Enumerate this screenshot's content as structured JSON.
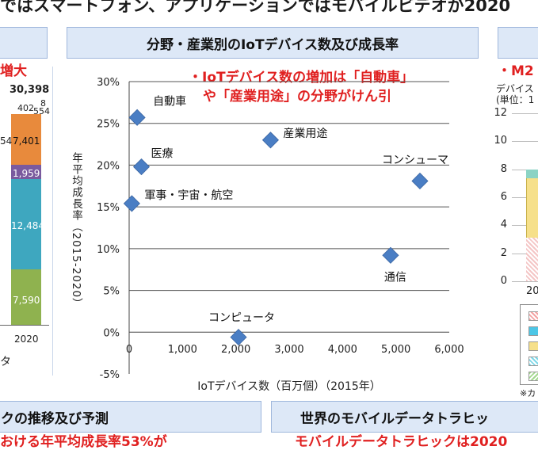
{
  "top_banner": "ではスマートフォン、アプリケーションではモバイルビデオが2020",
  "center_panel": {
    "title": "分野・産業別のIoTデバイス数及び成長率",
    "note_line1": "・IoTデバイス数の増加は「自動車」",
    "note_line2": "や「産業用途」の分野がけん引"
  },
  "left_panel": {
    "red_fragment": "増大",
    "total": "30,398",
    "top_small": [
      "402",
      "8",
      "554"
    ],
    "seg_labels": [
      "7,401",
      "1,959",
      "12,484",
      "7,590"
    ],
    "edge_fragment": "54",
    "year": "2020",
    "bottom_fragment": "タ"
  },
  "right_panel": {
    "red_fragment": "・M2",
    "sub1": "デバイス",
    "sub2": "(単位：1",
    "yticks": [
      "12",
      "10",
      "8",
      "6",
      "4",
      "2",
      "0"
    ],
    "year_fragment": "20",
    "note_fragment": "※カ"
  },
  "bottom_panels": {
    "left_title": "クの推移及び予測",
    "right_title": "世界のモバイルデータトラヒッ",
    "left_sub": "おける年平均成長率53%が",
    "right_sub": "モバイルデータトラヒックは2020"
  },
  "colors": {
    "marker": "#4a7ec4",
    "gridline": "#555555",
    "note_red": "#e02020",
    "seg_green": "#8fb24f",
    "seg_teal": "#3ea7bf",
    "seg_purple": "#7a5a9e",
    "seg_orange": "#e88a3c"
  },
  "chart_data": {
    "type": "scatter",
    "title": "分野・産業別のIoTデバイス数及び成長率",
    "xlabel": "IoTデバイス数（百万個）（2015年）",
    "ylabel": "年平均成長率（2015-2020）",
    "xlim": [
      0,
      6000
    ],
    "ylim": [
      -5,
      30
    ],
    "xticks": [
      "0",
      "1,000",
      "2,000",
      "3,000",
      "4,000",
      "5,000",
      "6,000"
    ],
    "yticks": [
      "30%",
      "25%",
      "20%",
      "15%",
      "10%",
      "5%",
      "0%",
      "-5%"
    ],
    "grid": "horizontal",
    "points": [
      {
        "label": "自動車",
        "x": 150,
        "y": 25.7
      },
      {
        "label": "医療",
        "x": 230,
        "y": 19.8
      },
      {
        "label": "軍事・宇宙・航空",
        "x": 50,
        "y": 15.4
      },
      {
        "label": "産業用途",
        "x": 2650,
        "y": 23.0
      },
      {
        "label": "コンシューマ",
        "x": 5450,
        "y": 18.1
      },
      {
        "label": "通信",
        "x": 4900,
        "y": 9.2
      },
      {
        "label": "コンピュータ",
        "x": 2050,
        "y": -0.6
      }
    ]
  }
}
